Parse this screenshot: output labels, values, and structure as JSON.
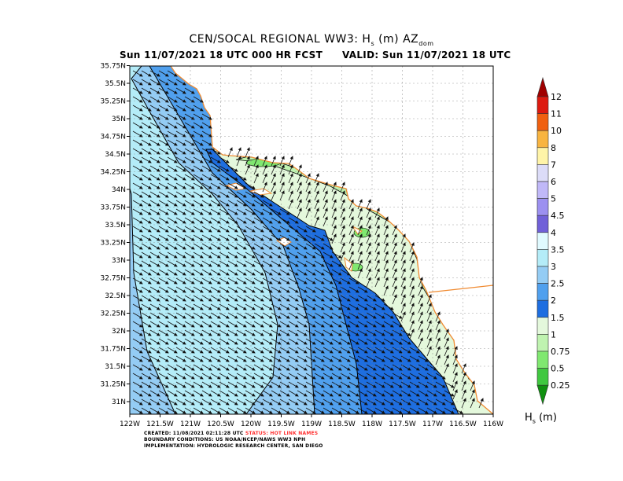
{
  "title": {
    "main": "CEN/SOCAL REGIONAL WW3: H",
    "sub_s": "s",
    "unit": " (m) AZ",
    "sub_dom": "dom"
  },
  "subtitle": "Sun 11/07/2021 18 UTC 000 HR FCST",
  "valid": "VALID: Sun 11/07/2021 18 UTC",
  "footer": {
    "created": "CREATED: 11/08/2021 02:11:28 UTC",
    "status": "STATUS: HOT LINK NAMES",
    "status_color": "#ff3030",
    "boundary": "BOUNDARY CONDITIONS: US NOAA/NCEP/NAWS WW3 NPH",
    "implementation": "IMPLEMENTATION: HYDROLOGIC RESEARCH CENTER, SAN DIEGO"
  },
  "map": {
    "lon_labels": [
      "122W",
      "121.5W",
      "121W",
      "120.5W",
      "120W",
      "119.5W",
      "119W",
      "118.5W",
      "118W",
      "117.5W",
      "117W",
      "116.5W",
      "116W"
    ],
    "lat_labels": [
      "35.75N",
      "35.5N",
      "35.25N",
      "35N",
      "34.75N",
      "34.5N",
      "34.25N",
      "34N",
      "33.75N",
      "33.5N",
      "33.25N",
      "33N",
      "32.75N",
      "32.5N",
      "32.25N",
      "32N",
      "31.75N",
      "31.5N",
      "31.25N",
      "31N"
    ],
    "coast_color": "#f08a30",
    "vector_field": "wave direction arrows"
  },
  "colorbar": {
    "label": "H",
    "label_sub": "s",
    "label_unit": " (m)",
    "levels": [
      "12",
      "11",
      "10",
      "8",
      "7",
      "6",
      "5",
      "4.5",
      "4",
      "3.5",
      "3",
      "2.5",
      "2",
      "1.5",
      "1",
      "0.75",
      "0.5",
      "0.25"
    ],
    "colors": [
      "#a00000",
      "#dd1a10",
      "#f06010",
      "#f8b440",
      "#fff4a8",
      "#dcdcf8",
      "#c0b8f8",
      "#9c90f0",
      "#7060d8",
      "#e0faff",
      "#b4ecf8",
      "#94ccf4",
      "#50a0ee",
      "#1e6ee0",
      "#e4f8dc",
      "#bff3b0",
      "#80e870",
      "#40c840",
      "#109010"
    ]
  }
}
